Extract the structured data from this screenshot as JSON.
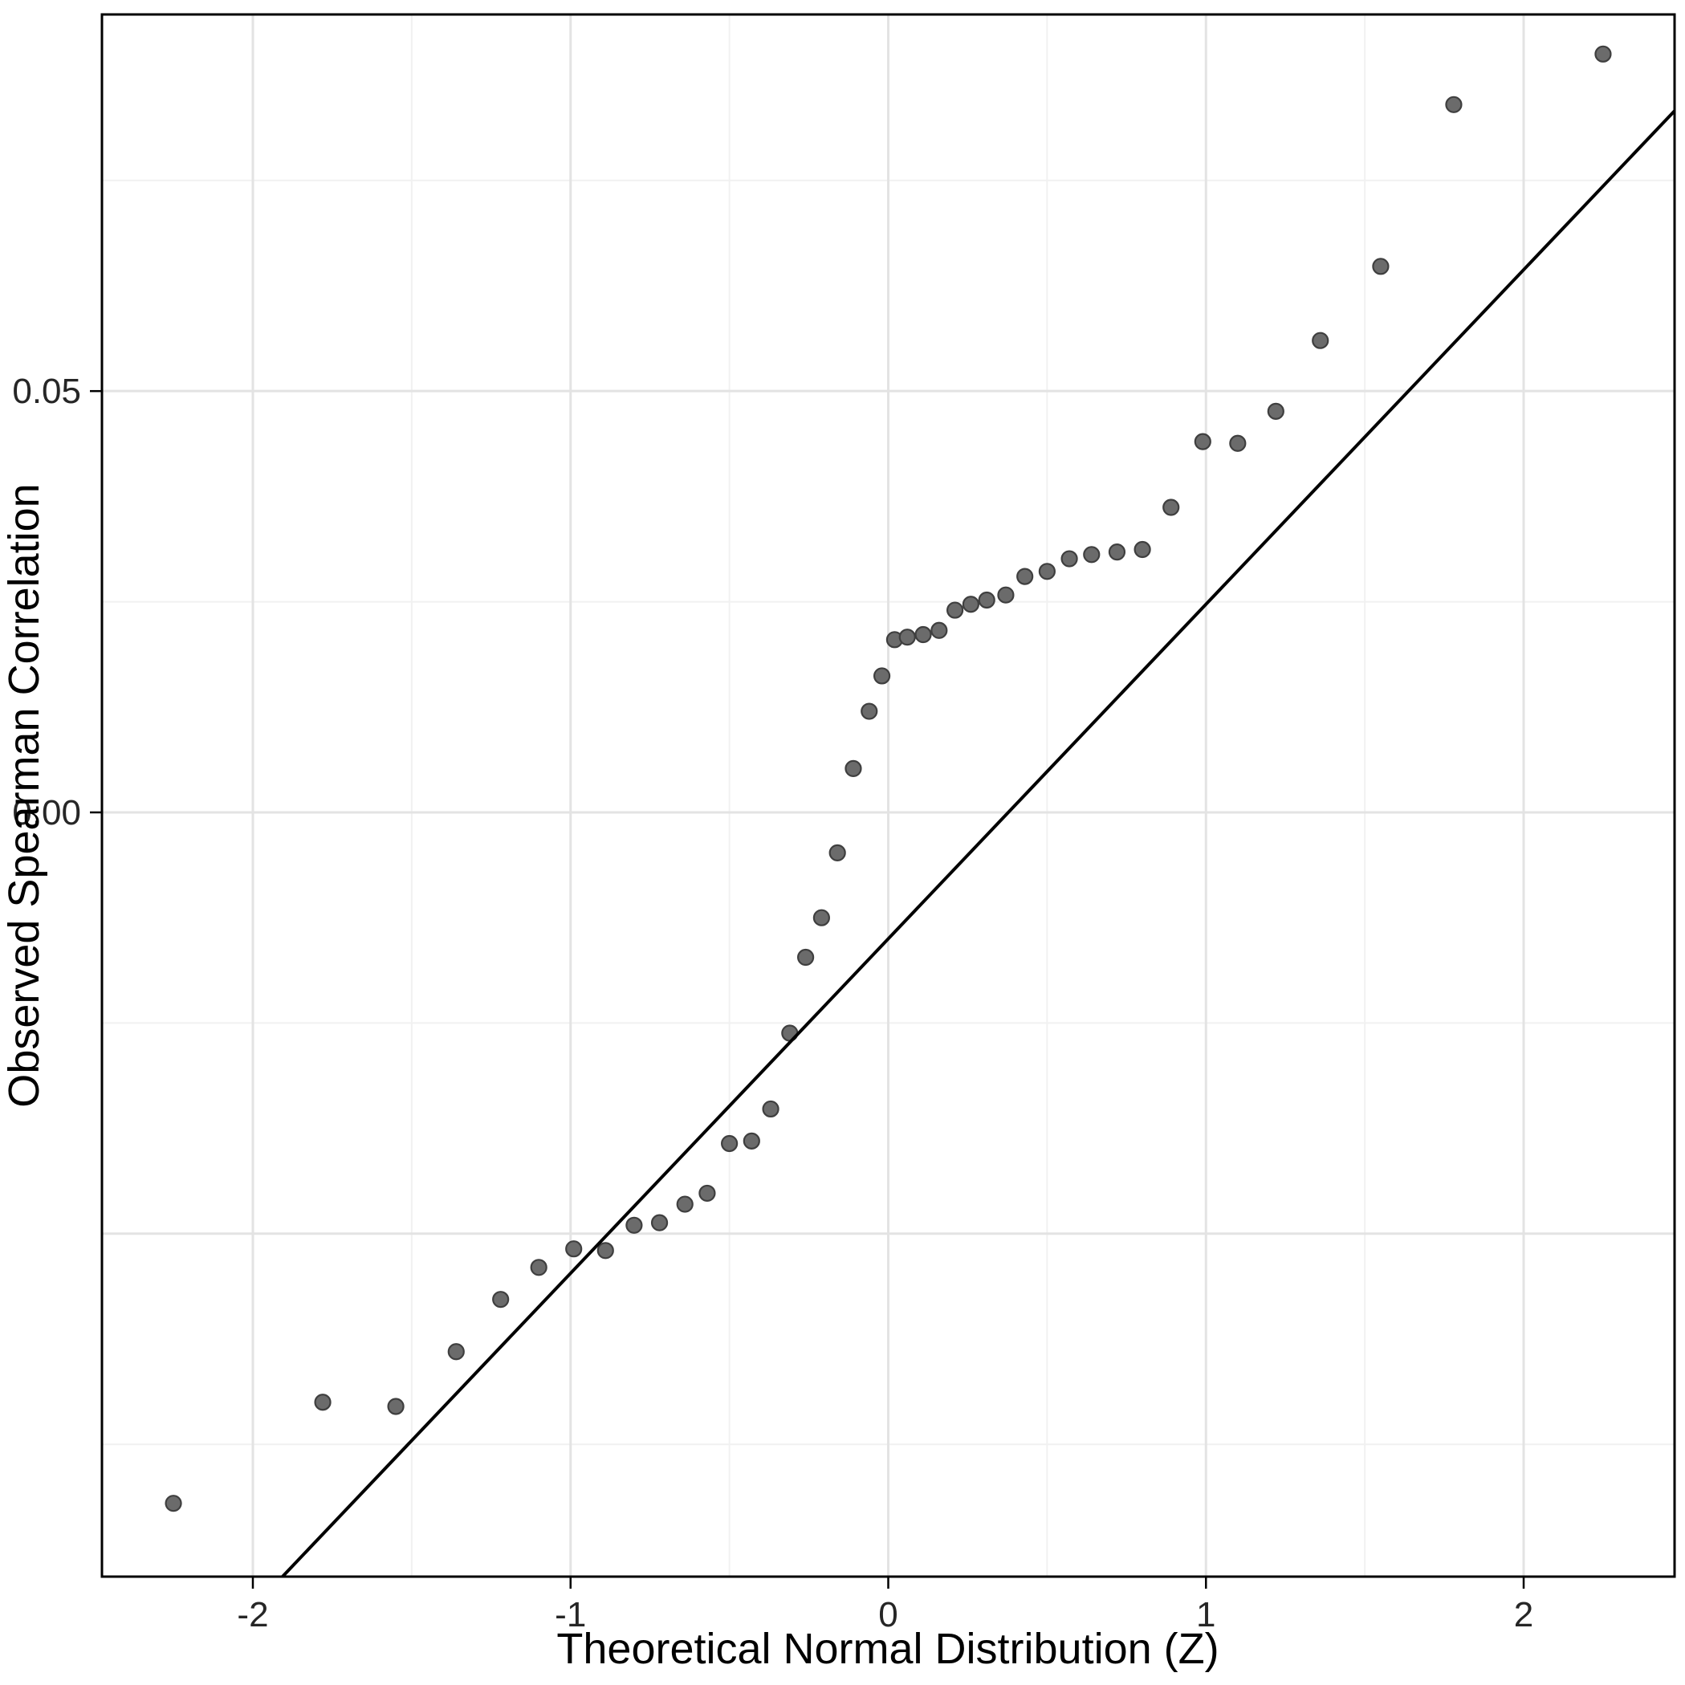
{
  "chart_data": {
    "type": "scatter",
    "title": "",
    "xlabel": "Theoretical Normal Distribution (Z)",
    "ylabel": "Observed Spearman Correlation",
    "legend": "none",
    "grid": {
      "visible": true,
      "major_color": "#e3e3e3",
      "minor_color": "#f1f1f1"
    },
    "panel": {
      "background": "#ffffff",
      "border_color": "#000000"
    },
    "xlim": [
      -2.475,
      2.475
    ],
    "ylim": [
      -0.0907,
      0.0947
    ],
    "x_ticks": {
      "values": [
        -2,
        -1,
        0,
        1,
        2
      ],
      "labels": [
        "-2",
        "-1",
        "0",
        "1",
        "2"
      ]
    },
    "x_minor": [
      -1.5,
      -0.5,
      0.5,
      1.5
    ],
    "y_ticks": {
      "values": [
        0.05,
        0.0
      ],
      "labels": [
        "0.05",
        "0.00"
      ]
    },
    "y_major_unlabeled": [
      -0.05
    ],
    "y_minor": [
      0.075,
      0.025,
      -0.025,
      -0.075
    ],
    "reference_line": {
      "slope": 0.0397,
      "intercept": -0.015,
      "color": "#000000",
      "width": 4
    },
    "point_style": {
      "fill": "#6b6b6b",
      "stroke": "#3f3f3f",
      "radius": 9.5,
      "stroke_width": 2.2
    },
    "series_name": "observed-vs-theoretical-quantiles",
    "points": [
      [
        -2.25,
        -0.082
      ],
      [
        -1.78,
        -0.07
      ],
      [
        -1.55,
        -0.0705
      ],
      [
        -1.36,
        -0.064
      ],
      [
        -1.22,
        -0.0578
      ],
      [
        -1.1,
        -0.054
      ],
      [
        -0.99,
        -0.0518
      ],
      [
        -0.89,
        -0.052
      ],
      [
        -0.8,
        -0.049
      ],
      [
        -0.72,
        -0.0487
      ],
      [
        -0.64,
        -0.0465
      ],
      [
        -0.57,
        -0.0452
      ],
      [
        -0.5,
        -0.0393
      ],
      [
        -0.43,
        -0.039
      ],
      [
        -0.37,
        -0.0352
      ],
      [
        -0.31,
        -0.0262
      ],
      [
        -0.26,
        -0.0172
      ],
      [
        -0.21,
        -0.0125
      ],
      [
        -0.16,
        -0.0048
      ],
      [
        -0.11,
        0.0052
      ],
      [
        -0.06,
        0.012
      ],
      [
        -0.02,
        0.0162
      ],
      [
        0.02,
        0.0205
      ],
      [
        0.06,
        0.0208
      ],
      [
        0.11,
        0.0211
      ],
      [
        0.16,
        0.0216
      ],
      [
        0.21,
        0.024
      ],
      [
        0.26,
        0.0247
      ],
      [
        0.31,
        0.0252
      ],
      [
        0.37,
        0.0258
      ],
      [
        0.43,
        0.028
      ],
      [
        0.5,
        0.0286
      ],
      [
        0.57,
        0.0301
      ],
      [
        0.64,
        0.0306
      ],
      [
        0.72,
        0.0309
      ],
      [
        0.8,
        0.0312
      ],
      [
        0.89,
        0.0362
      ],
      [
        0.99,
        0.044
      ],
      [
        1.1,
        0.0438
      ],
      [
        1.22,
        0.0476
      ],
      [
        1.36,
        0.056
      ],
      [
        1.55,
        0.0648
      ],
      [
        1.78,
        0.084
      ],
      [
        2.25,
        0.09
      ]
    ]
  }
}
